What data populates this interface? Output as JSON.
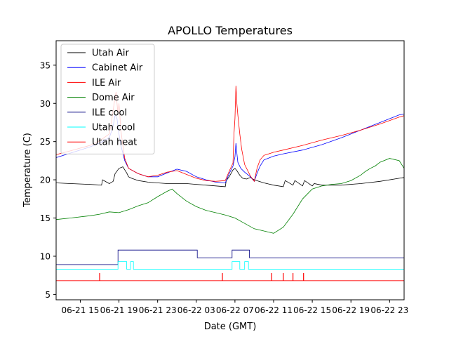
{
  "chart_data": {
    "type": "line",
    "title": "APOLLO Temperatures",
    "xlabel": "Date (GMT)",
    "ylabel": "Temperature (C)",
    "xlim": [
      12.5,
      48.5
    ],
    "ylim": [
      4.3,
      38.2
    ],
    "grid": false,
    "legend_position": "upper-left",
    "x_units": "hours since 06-21 00:00 GMT",
    "x_ticks": [
      {
        "x": 15,
        "label": "06-21 15"
      },
      {
        "x": 19,
        "label": "06-21 19"
      },
      {
        "x": 23,
        "label": "06-21 23"
      },
      {
        "x": 27,
        "label": "06-22 03"
      },
      {
        "x": 31,
        "label": "06-22 07"
      },
      {
        "x": 35,
        "label": "06-22 11"
      },
      {
        "x": 39,
        "label": "06-22 15"
      },
      {
        "x": 43,
        "label": "06-22 19"
      },
      {
        "x": 47,
        "label": "06-22 23"
      }
    ],
    "y_ticks": [
      {
        "y": 5,
        "label": "5"
      },
      {
        "y": 10,
        "label": "10"
      },
      {
        "y": 15,
        "label": "15"
      },
      {
        "y": 20,
        "label": "20"
      },
      {
        "y": 25,
        "label": "25"
      },
      {
        "y": 30,
        "label": "30"
      },
      {
        "y": 35,
        "label": "35"
      }
    ],
    "series": [
      {
        "name": "Utah Air",
        "color": "#000000",
        "x": [
          12.5,
          14,
          16,
          17.2,
          17.3,
          18,
          18.4,
          18.6,
          19.0,
          19.4,
          19.8,
          20.0,
          20.3,
          21,
          22,
          23,
          24,
          25,
          26,
          27,
          28,
          29,
          30.0,
          30.1,
          30.4,
          30.8,
          31.0,
          31.2,
          31.5,
          31.8,
          32.2,
          32.6,
          33,
          34,
          35,
          36,
          36.2,
          37,
          37.2,
          38,
          38.2,
          39,
          39.2,
          40,
          42,
          44,
          46,
          48,
          48.5
        ],
        "y": [
          19.6,
          19.5,
          19.4,
          19.3,
          20.0,
          19.5,
          19.8,
          20.8,
          21.5,
          21.7,
          20.9,
          20.4,
          20.2,
          19.9,
          19.7,
          19.6,
          19.5,
          19.5,
          19.5,
          19.4,
          19.3,
          19.2,
          19.1,
          19.9,
          20.4,
          21.3,
          21.5,
          21.2,
          20.6,
          20.2,
          20.1,
          20.3,
          20.0,
          19.6,
          19.3,
          19.1,
          19.9,
          19.3,
          19.9,
          19.2,
          19.9,
          19.2,
          19.5,
          19.3,
          19.3,
          19.5,
          19.8,
          20.2,
          20.3
        ]
      },
      {
        "name": "Cabinet Air",
        "color": "#0000ff",
        "x": [
          12.5,
          14,
          16,
          17,
          18,
          18.4,
          18.6,
          18.8,
          19.0,
          19.2,
          19.4,
          19.6,
          20.0,
          21,
          22,
          23,
          24,
          25,
          26,
          27,
          28,
          29,
          30.0,
          30.4,
          30.8,
          31.0,
          31.1,
          31.2,
          31.3,
          31.6,
          32,
          32.6,
          33,
          33.3,
          33.6,
          34,
          35,
          36,
          38,
          40,
          42,
          44,
          46,
          48,
          48.5
        ],
        "y": [
          22.9,
          23.5,
          24.3,
          24.8,
          25.5,
          27.0,
          28.5,
          28.0,
          26.0,
          24.5,
          23.5,
          22.5,
          21.5,
          20.8,
          20.4,
          20.4,
          20.9,
          21.4,
          21.1,
          20.4,
          20.0,
          19.7,
          19.6,
          20.8,
          21.8,
          23.0,
          24.8,
          23.5,
          22.3,
          21.5,
          21.0,
          20.4,
          19.8,
          20.9,
          21.8,
          22.6,
          23.1,
          23.4,
          23.9,
          24.6,
          25.5,
          26.5,
          27.5,
          28.5,
          28.6
        ]
      },
      {
        "name": "ILE Air",
        "color": "#ff0000",
        "x": [
          12.5,
          14,
          16,
          17,
          18,
          18.3,
          18.5,
          18.7,
          18.9,
          19.0,
          19.2,
          19.4,
          19.6,
          20.0,
          21,
          22,
          23,
          24,
          25,
          26,
          27,
          28,
          29,
          30.0,
          30.4,
          30.8,
          30.9,
          31.0,
          31.1,
          31.2,
          31.3,
          31.5,
          31.7,
          32.0,
          32.6,
          33.0,
          33.3,
          33.6,
          34,
          35,
          36,
          38,
          40,
          42,
          44,
          46,
          48,
          48.5
        ],
        "y": [
          23.3,
          23.8,
          24.5,
          25.1,
          26.0,
          28.2,
          30.0,
          31.5,
          28.5,
          30.0,
          26.5,
          24.5,
          22.8,
          21.5,
          20.8,
          20.4,
          20.6,
          21.0,
          21.2,
          20.7,
          20.2,
          19.9,
          19.8,
          19.9,
          21.1,
          22.2,
          26.0,
          28.0,
          32.3,
          30.0,
          28.5,
          26.0,
          24.0,
          22.0,
          20.5,
          19.8,
          21.6,
          22.6,
          23.2,
          23.6,
          23.9,
          24.5,
          25.2,
          25.8,
          26.5,
          27.3,
          28.2,
          28.4
        ]
      },
      {
        "name": "Dome Air",
        "color": "#008000",
        "x": [
          12.5,
          14,
          16,
          17,
          18,
          19,
          20,
          21,
          22,
          23,
          24,
          24.5,
          25,
          26,
          27,
          28,
          29,
          30,
          31,
          32,
          33,
          34,
          35,
          36,
          37,
          38,
          39,
          40,
          41,
          42,
          43,
          44,
          44.5,
          45,
          45.5,
          46,
          47,
          48,
          48.5
        ],
        "y": [
          14.8,
          15.0,
          15.3,
          15.5,
          15.8,
          15.7,
          16.1,
          16.6,
          17.0,
          17.8,
          18.5,
          18.8,
          18.2,
          17.2,
          16.5,
          16.0,
          15.7,
          15.4,
          15.0,
          14.3,
          13.6,
          13.3,
          13.0,
          13.8,
          15.5,
          17.5,
          18.8,
          19.2,
          19.4,
          19.5,
          19.9,
          20.6,
          21.1,
          21.5,
          21.8,
          22.3,
          22.8,
          22.5,
          21.5
        ]
      },
      {
        "name": "ILE cool",
        "color": "#000080",
        "x": [
          12.5,
          18.9,
          18.9,
          27.1,
          27.1,
          30.7,
          30.7,
          32.5,
          32.5,
          48.5
        ],
        "y": [
          8.9,
          8.9,
          10.8,
          10.8,
          9.8,
          9.8,
          10.8,
          10.8,
          9.8,
          9.8
        ]
      },
      {
        "name": "Utah cool",
        "color": "#00ffff",
        "x": [
          12.5,
          18.9,
          18.9,
          19.8,
          19.8,
          20.2,
          20.2,
          20.5,
          20.5,
          30.7,
          30.7,
          31.5,
          31.5,
          32.0,
          32.0,
          32.4,
          32.4,
          48.5
        ],
        "y": [
          8.3,
          8.3,
          9.3,
          9.3,
          8.3,
          8.3,
          9.3,
          9.3,
          8.3,
          8.3,
          9.3,
          9.3,
          8.3,
          8.3,
          9.3,
          9.3,
          8.3,
          8.3
        ]
      },
      {
        "name": "Utah heat",
        "color": "#ff0000",
        "x": [
          12.5,
          48.5
        ],
        "y": [
          6.8,
          6.8
        ],
        "spikes": [
          {
            "x": 17.0,
            "top": 7.8
          },
          {
            "x": 29.7,
            "top": 7.8
          },
          {
            "x": 34.8,
            "top": 7.8
          },
          {
            "x": 36.0,
            "top": 7.8
          },
          {
            "x": 37.0,
            "top": 7.8
          },
          {
            "x": 38.1,
            "top": 7.8
          }
        ]
      }
    ]
  }
}
